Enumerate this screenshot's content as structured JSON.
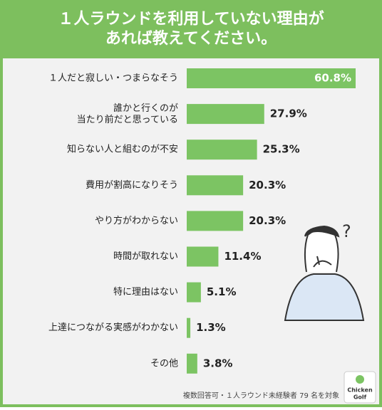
{
  "chart_data": {
    "type": "barh",
    "title": "１人ラウンドを利用していない理由が\nあれば教えてください。",
    "categories": [
      "１人だと寂しい・つまらなそう",
      "誰かと行くのが\n当たり前だと思っている",
      "知らない人と組むのが不安",
      "費用が割高になりそう",
      "やり方がわからない",
      "時間が取れない",
      "特に理由はない",
      "上達につながる実感がわかない",
      "その他"
    ],
    "values": [
      60.8,
      27.9,
      25.3,
      20.3,
      20.3,
      11.4,
      5.1,
      1.3,
      3.8
    ],
    "value_labels": [
      "60.8%",
      "27.9%",
      "25.3%",
      "20.3%",
      "20.3%",
      "11.4%",
      "5.1%",
      "1.3%",
      "3.8%"
    ],
    "color": "#7cc463",
    "note": "複数回答可・１人ラウンド未経験者 79 名を対象",
    "illustration_text": "?",
    "logo": [
      "Chicken",
      "Golf"
    ]
  }
}
